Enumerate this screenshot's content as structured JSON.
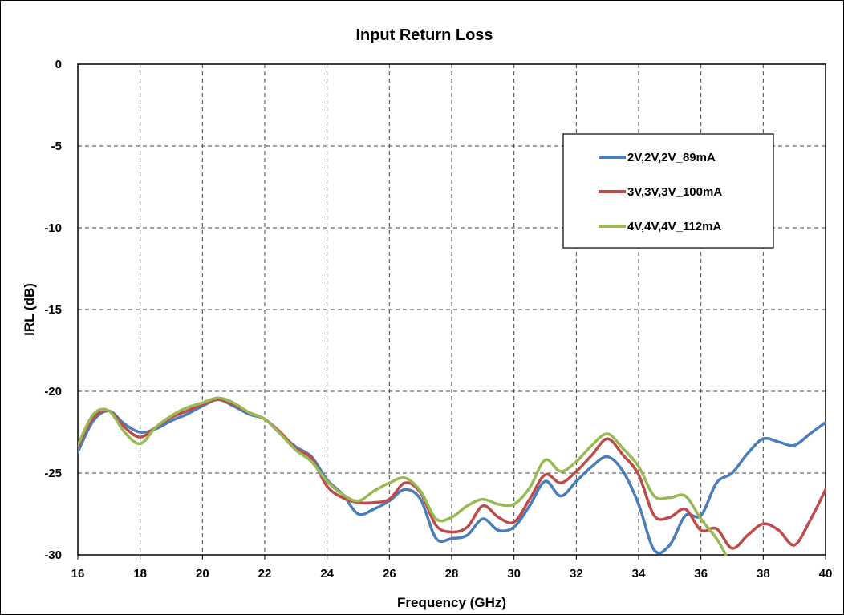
{
  "chart_data": {
    "type": "line",
    "title": "Input Return Loss",
    "xlabel": "Frequency (GHz)",
    "ylabel": "IRL (dB)",
    "xlim": [
      16,
      40
    ],
    "ylim": [
      -30,
      0
    ],
    "xticks": [
      16,
      18,
      20,
      22,
      24,
      26,
      28,
      30,
      32,
      34,
      36,
      38,
      40
    ],
    "yticks": [
      0,
      -5,
      -10,
      -15,
      -20,
      -25,
      -30
    ],
    "grid": true,
    "legend_position": "upper-right",
    "series": [
      {
        "name": "2V,2V,2V_89mA",
        "color": "#4a7ebb",
        "x": [
          16,
          16.5,
          17,
          17.5,
          18,
          18.5,
          19,
          19.5,
          20,
          20.5,
          21,
          21.5,
          22,
          22.5,
          23,
          23.5,
          24,
          24.5,
          25,
          25.5,
          26,
          26.5,
          27,
          27.5,
          28,
          28.5,
          29,
          29.5,
          30,
          30.5,
          31,
          31.5,
          32,
          32.5,
          33,
          33.5,
          34,
          34.5,
          35,
          35.5,
          36,
          36.5,
          37,
          37.5,
          38,
          38.5,
          39,
          39.5,
          40
        ],
        "y": [
          -23.7,
          -21.8,
          -21.2,
          -22.0,
          -22.5,
          -22.3,
          -21.8,
          -21.4,
          -20.9,
          -20.5,
          -20.9,
          -21.4,
          -21.7,
          -22.6,
          -23.4,
          -24.0,
          -25.4,
          -26.3,
          -27.5,
          -27.2,
          -26.7,
          -26.0,
          -26.6,
          -29.0,
          -29.0,
          -28.8,
          -27.8,
          -28.5,
          -28.3,
          -27.0,
          -25.5,
          -26.4,
          -25.5,
          -24.6,
          -24.0,
          -24.9,
          -26.9,
          -29.7,
          -29.4,
          -27.6,
          -27.6,
          -25.6,
          -25.0,
          -23.8,
          -22.9,
          -23.1,
          -23.3,
          -22.6,
          -21.9
        ]
      },
      {
        "name": "3V,3V,3V_100mA",
        "color": "#be4b48",
        "x": [
          16,
          16.5,
          17,
          17.5,
          18,
          18.5,
          19,
          19.5,
          20,
          20.5,
          21,
          21.5,
          22,
          22.5,
          23,
          23.5,
          24,
          24.5,
          25,
          25.5,
          26,
          26.5,
          27,
          27.5,
          28,
          28.5,
          29,
          29.5,
          30,
          30.5,
          31,
          31.5,
          32,
          32.5,
          33,
          33.5,
          34,
          34.5,
          35,
          35.5,
          36,
          36.5,
          37,
          37.5,
          38,
          38.5,
          39,
          39.5,
          40
        ],
        "y": [
          -23.4,
          -21.6,
          -21.2,
          -22.2,
          -22.8,
          -22.2,
          -21.6,
          -21.2,
          -20.8,
          -20.5,
          -20.8,
          -21.3,
          -21.7,
          -22.5,
          -23.5,
          -24.1,
          -25.8,
          -26.5,
          -26.8,
          -26.8,
          -26.6,
          -25.6,
          -26.2,
          -28.2,
          -28.6,
          -28.3,
          -27.0,
          -27.7,
          -28.0,
          -26.6,
          -25.1,
          -25.6,
          -24.9,
          -23.9,
          -22.9,
          -23.9,
          -25.1,
          -27.6,
          -27.7,
          -27.2,
          -28.5,
          -28.4,
          -29.6,
          -28.8,
          -28.1,
          -28.5,
          -29.4,
          -27.9,
          -26.0
        ]
      },
      {
        "name": "4V,4V,4V_112mA",
        "color": "#98b954",
        "x": [
          16,
          16.5,
          17,
          17.5,
          18,
          18.5,
          19,
          19.5,
          20,
          20.5,
          21,
          21.5,
          22,
          22.5,
          23,
          23.5,
          24,
          24.5,
          25,
          25.5,
          26,
          26.5,
          27,
          27.5,
          28,
          28.5,
          29,
          29.5,
          30,
          30.5,
          31,
          31.5,
          32,
          32.5,
          33,
          33.5,
          34,
          34.5,
          35,
          35.5,
          36,
          36.5,
          36.8
        ],
        "y": [
          -23.3,
          -21.4,
          -21.2,
          -22.5,
          -23.2,
          -22.2,
          -21.5,
          -21.0,
          -20.7,
          -20.4,
          -20.7,
          -21.3,
          -21.7,
          -22.6,
          -23.6,
          -24.3,
          -25.5,
          -26.3,
          -26.7,
          -26.1,
          -25.6,
          -25.3,
          -26.1,
          -27.8,
          -27.7,
          -27.0,
          -26.6,
          -26.9,
          -26.9,
          -25.9,
          -24.2,
          -24.9,
          -24.3,
          -23.3,
          -22.6,
          -23.5,
          -24.6,
          -26.4,
          -26.5,
          -26.4,
          -27.8,
          -29.0,
          -30.0
        ]
      }
    ]
  }
}
